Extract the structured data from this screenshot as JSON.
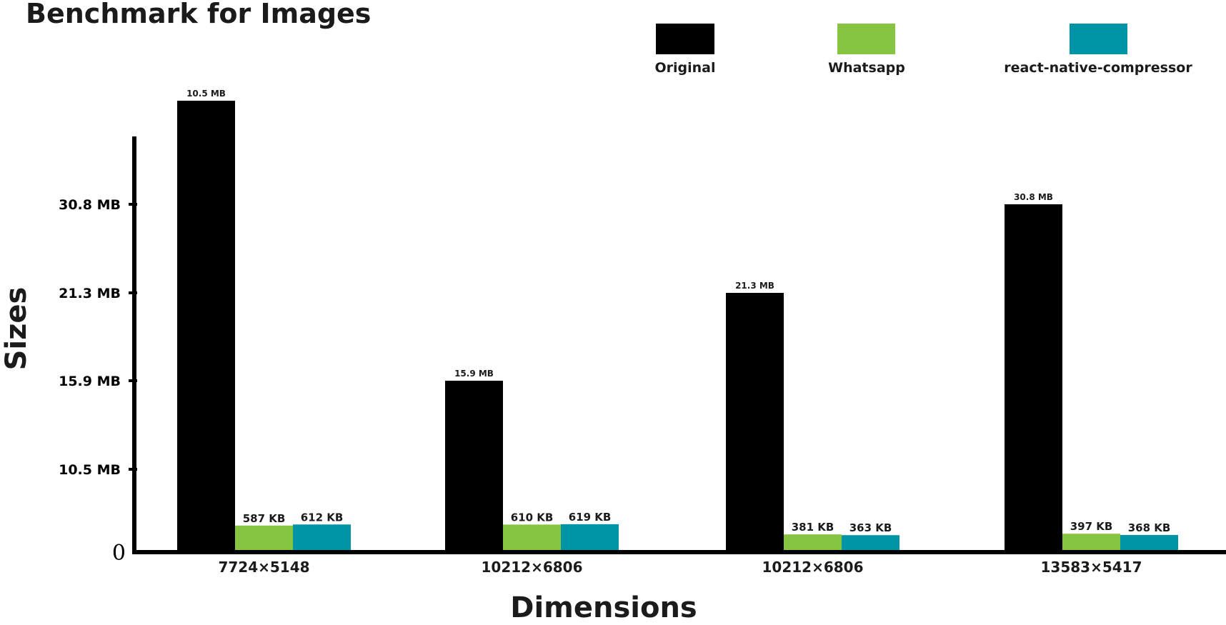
{
  "chart_data": {
    "type": "bar",
    "title": "Benchmark for Images",
    "xlabel": "Dimensions",
    "ylabel": "Sizes",
    "categories": [
      "7724×5148",
      "10212×6806",
      "10212×6806",
      "13583×5417"
    ],
    "series": [
      {
        "name": "Original",
        "color": "#000000",
        "values": [
          10.5,
          15.9,
          21.3,
          30.8
        ],
        "labels": [
          "10.5 MB",
          "15.9 MB",
          "21.3 MB",
          "30.8 MB"
        ]
      },
      {
        "name": "Whatsapp",
        "color": "#86c441",
        "values": [
          0.587,
          0.61,
          0.381,
          0.397
        ],
        "labels": [
          "587 KB",
          "610 KB",
          "381 KB",
          "397 KB"
        ]
      },
      {
        "name": "react-native-compressor",
        "color": "#0095a6",
        "values": [
          0.612,
          0.619,
          0.363,
          0.368
        ],
        "labels": [
          "612 KB",
          "619 KB",
          "363 KB",
          "368 KB"
        ]
      }
    ],
    "yticks": [
      {
        "value": 10.5,
        "label": "10.5 MB"
      },
      {
        "value": 15.9,
        "label": "15.9 MB"
      },
      {
        "value": 21.3,
        "label": "21.3 MB"
      },
      {
        "value": 30.8,
        "label": "30.8 MB"
      }
    ],
    "y_zero_label": "0",
    "y_scale": "non-linear (tick labels only)",
    "ylim": [
      0,
      40
    ],
    "grid": false,
    "legend_position": "top-right"
  }
}
